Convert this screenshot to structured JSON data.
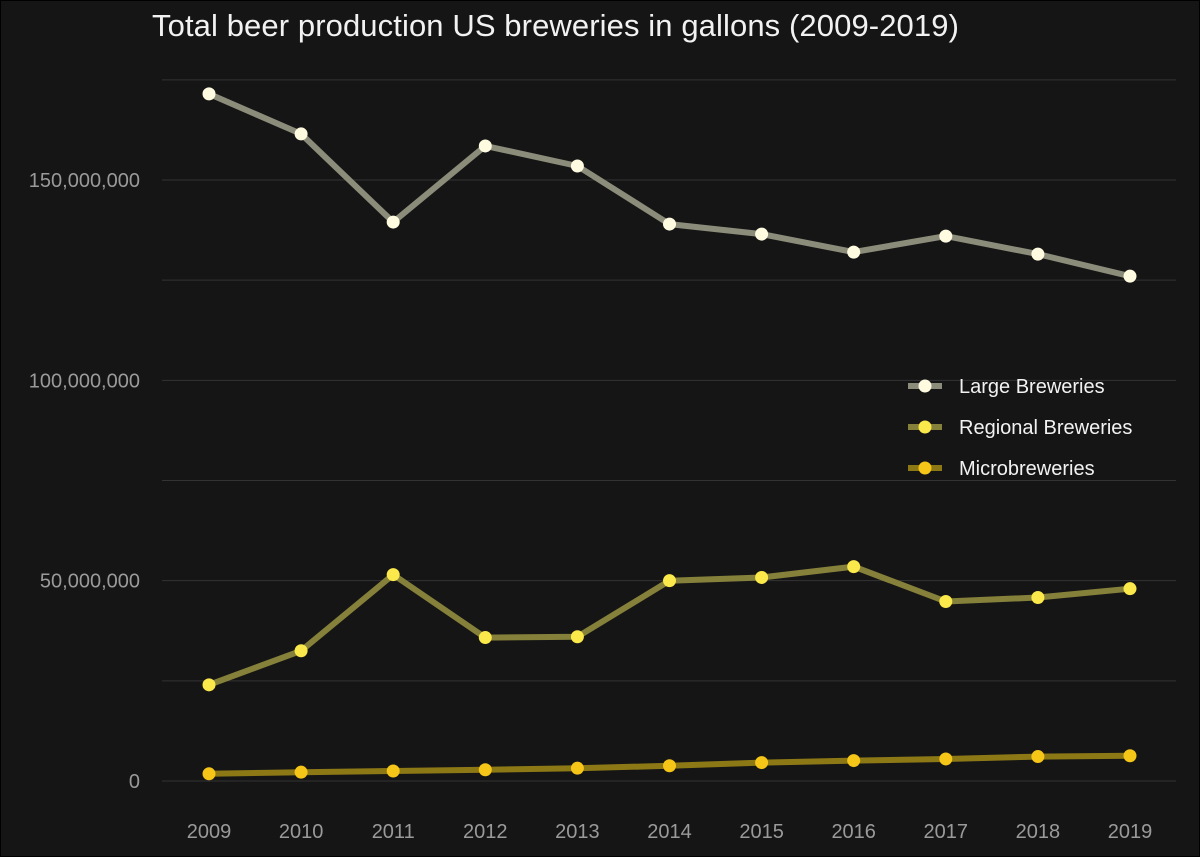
{
  "chart_data": {
    "type": "line",
    "title": "Total beer production US breweries in gallons (2009-2019)",
    "xlabel": "",
    "ylabel": "",
    "x": [
      "2009",
      "2010",
      "2011",
      "2012",
      "2013",
      "2014",
      "2015",
      "2016",
      "2017",
      "2018",
      "2019"
    ],
    "ylim": [
      -3000000,
      176000000
    ],
    "yticks": [
      0,
      50000000,
      100000000,
      150000000
    ],
    "ytick_labels": [
      "0",
      "50,000,000",
      "100,000,000",
      "150,000,000"
    ],
    "minor_gridlines": [
      25000000,
      75000000,
      125000000,
      175000000
    ],
    "grid": true,
    "legend_position": "right",
    "series": [
      {
        "name": "Large Breweries",
        "line_color": "#8c8c7a",
        "point_color": "#fffbe0",
        "values": [
          171500000,
          161500000,
          139500000,
          158500000,
          153500000,
          139000000,
          136500000,
          132000000,
          136000000,
          131500000,
          126000000
        ]
      },
      {
        "name": "Regional Breweries",
        "line_color": "#85803a",
        "point_color": "#fbe84a",
        "values": [
          24000000,
          32500000,
          51500000,
          35800000,
          36000000,
          50000000,
          50800000,
          53500000,
          44800000,
          45800000,
          48000000
        ]
      },
      {
        "name": "Microbreweries",
        "line_color": "#8d7816",
        "point_color": "#f5c518",
        "values": [
          1800000,
          2200000,
          2500000,
          2800000,
          3200000,
          3800000,
          4600000,
          5100000,
          5500000,
          6100000,
          6300000
        ]
      }
    ]
  }
}
